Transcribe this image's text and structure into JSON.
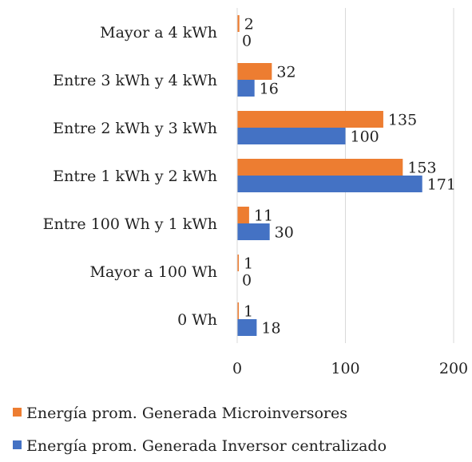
{
  "chart_data": {
    "type": "bar",
    "orientation": "horizontal",
    "categories": [
      "Mayor a 4 kWh",
      "Entre 3 kWh  y 4 kWh",
      "Entre 2 kWh y 3 kWh",
      "Entre 1 kWh y 2 kWh",
      "Entre 100 Wh y 1 kWh",
      "Mayor a 100 Wh",
      "0 Wh"
    ],
    "series": [
      {
        "name": "Energía prom. Generada Microinversores",
        "color": "#ED7D31",
        "values": [
          2,
          32,
          135,
          153,
          11,
          1,
          1
        ]
      },
      {
        "name": "Energía prom. Generada Inversor centralizado",
        "color": "#4472C4",
        "values": [
          0,
          16,
          100,
          171,
          30,
          0,
          18
        ]
      }
    ],
    "xlim": [
      0,
      200
    ],
    "xticks": [
      0,
      100,
      200
    ],
    "xtick_labels": [
      "0",
      "100",
      "200"
    ],
    "grid": "vertical",
    "legend": "bottom",
    "data_labels": true,
    "title": "",
    "xlabel": "",
    "ylabel": ""
  }
}
